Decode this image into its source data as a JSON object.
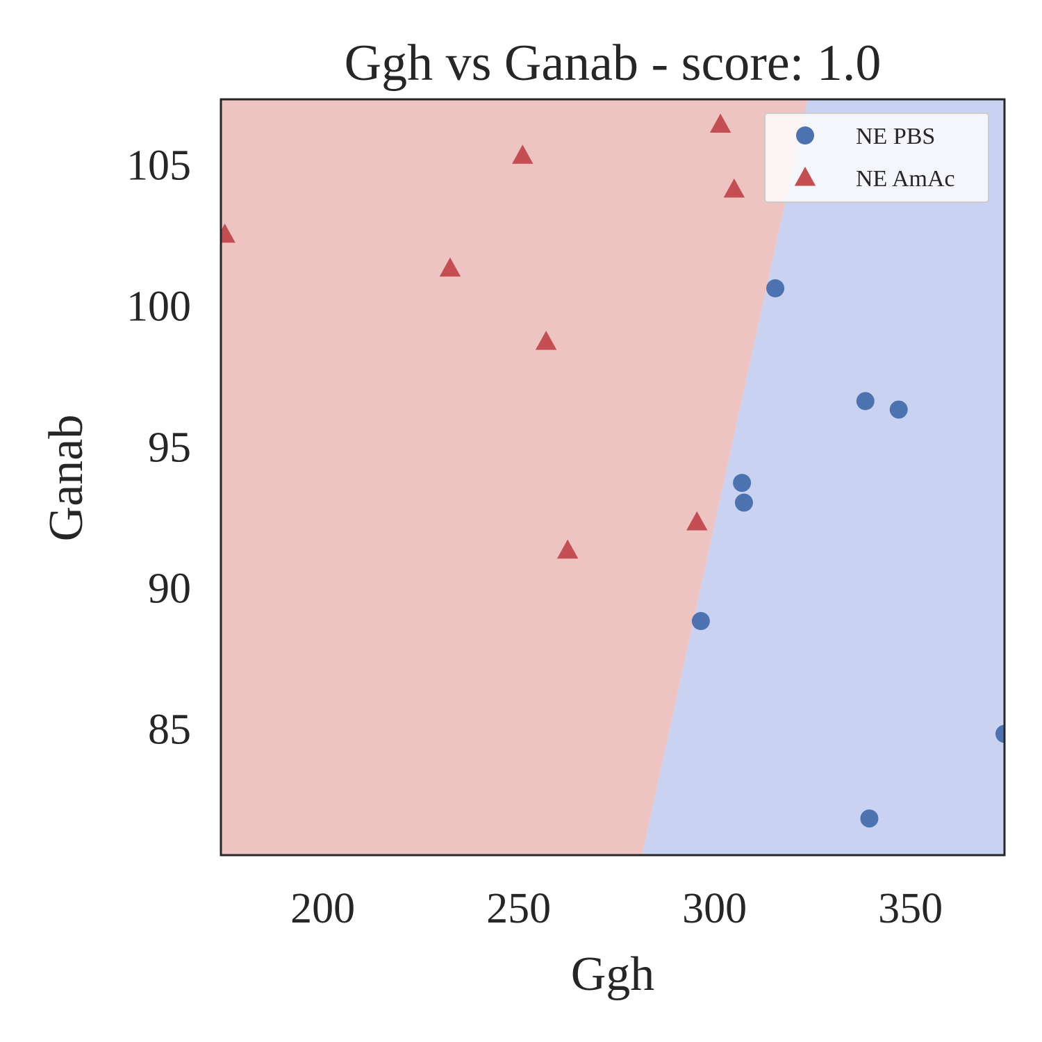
{
  "chart_data": {
    "type": "scatter",
    "title": "Ggh vs Ganab - score: 1.0",
    "xlabel": "Ggh",
    "ylabel": "Ganab",
    "xlim": [
      174,
      374
    ],
    "ylim": [
      80.5,
      107.3
    ],
    "xticks": [
      200,
      250,
      300,
      350
    ],
    "yticks": [
      85,
      90,
      95,
      100,
      105
    ],
    "grid": false,
    "legend_position": "top-right",
    "decision_boundary": {
      "points": [
        [
          281.5,
          80.5
        ],
        [
          323.8,
          107.3
        ]
      ],
      "left_region_color": "#edc4c2",
      "right_region_color": "#c9d2f1"
    },
    "series": [
      {
        "name": "NE PBS",
        "marker": "circle",
        "color": "#4c72b0",
        "points": [
          [
            315.5,
            100.6
          ],
          [
            338.5,
            96.6
          ],
          [
            347,
            96.3
          ],
          [
            307,
            93.7
          ],
          [
            307.5,
            93.0
          ],
          [
            296.5,
            88.8
          ],
          [
            374,
            84.8
          ],
          [
            339.5,
            81.8
          ]
        ]
      },
      {
        "name": "NE AmAc",
        "marker": "triangle",
        "color": "#c44e52",
        "points": [
          [
            301.5,
            106.4
          ],
          [
            251,
            105.3
          ],
          [
            305,
            104.1
          ],
          [
            175,
            102.5
          ],
          [
            232.5,
            101.3
          ],
          [
            257,
            98.7
          ],
          [
            295.5,
            92.3
          ],
          [
            262.5,
            91.3
          ]
        ]
      }
    ]
  }
}
